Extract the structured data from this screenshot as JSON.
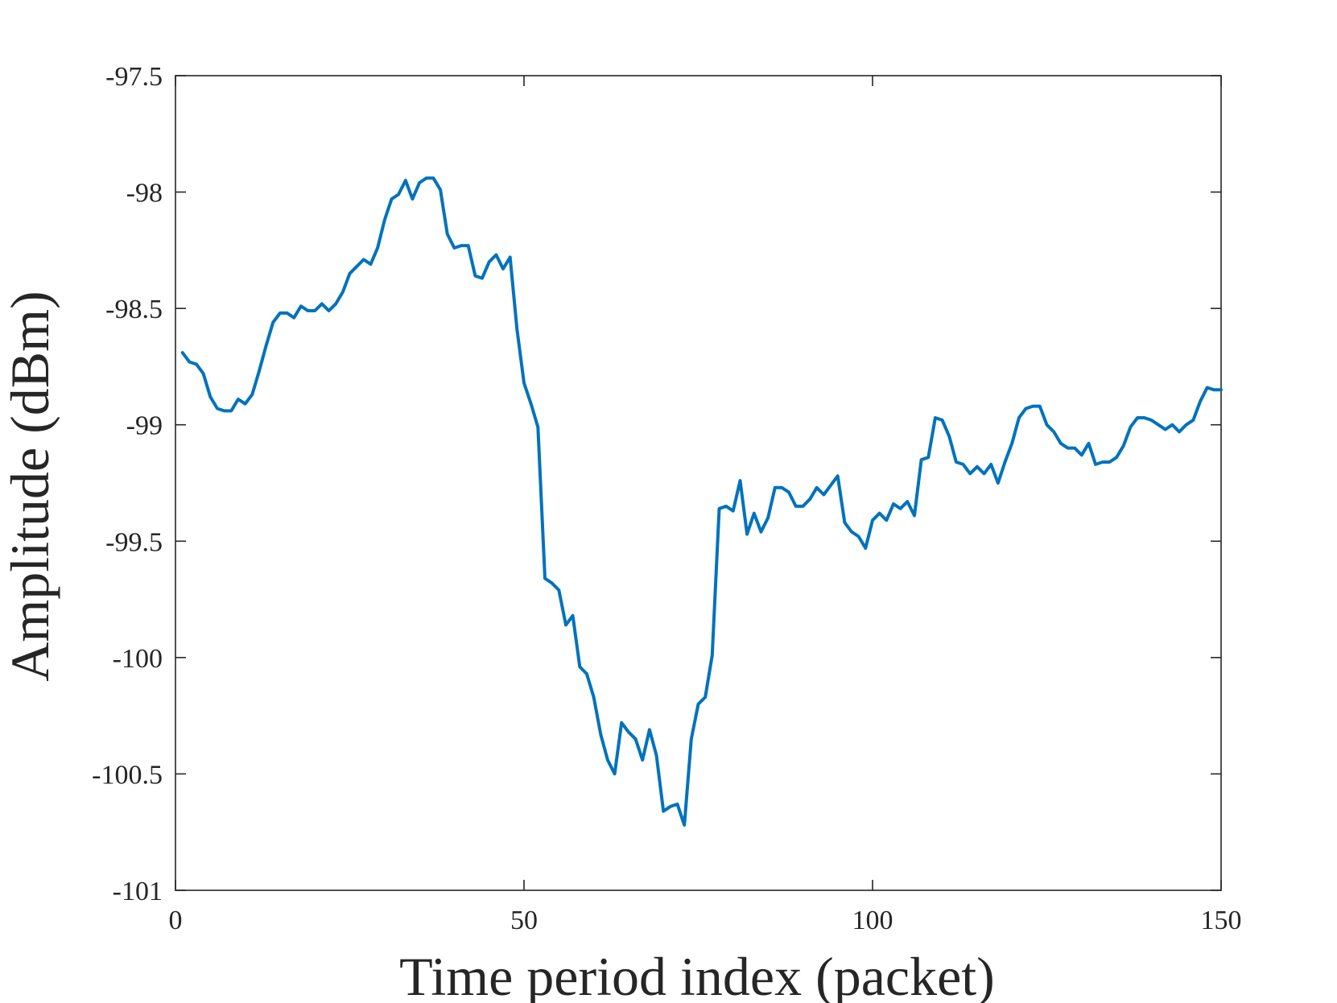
{
  "chart_data": {
    "type": "line",
    "title": "",
    "xlabel": "Time period index (packet)",
    "ylabel": "Amplitude (dBm)",
    "xlim": [
      0,
      150
    ],
    "ylim": [
      -101,
      -97.5
    ],
    "xticks": [
      0,
      50,
      100,
      150
    ],
    "yticks": [
      -101,
      -100.5,
      -100,
      -99.5,
      -99,
      -98.5,
      -98,
      -97.5
    ],
    "xtick_labels": [
      "0",
      "50",
      "100",
      "150"
    ],
    "ytick_labels": [
      "-101",
      "-100.5",
      "-100",
      "-99.5",
      "-99",
      "-98.5",
      "-98",
      "-97.5"
    ],
    "grid": false,
    "legend": "none",
    "series": [
      {
        "color": "#0072BD",
        "x": [
          1,
          2,
          3,
          4,
          5,
          6,
          7,
          8,
          9,
          10,
          11,
          12,
          13,
          14,
          15,
          16,
          17,
          18,
          19,
          20,
          21,
          22,
          23,
          24,
          25,
          26,
          27,
          28,
          29,
          30,
          31,
          32,
          33,
          34,
          35,
          36,
          37,
          38,
          39,
          40,
          41,
          42,
          43,
          44,
          45,
          46,
          47,
          48,
          49,
          50,
          51,
          52,
          53,
          54,
          55,
          56,
          57,
          58,
          59,
          60,
          61,
          62,
          63,
          64,
          65,
          66,
          67,
          68,
          69,
          70,
          71,
          72,
          73,
          74,
          75,
          76,
          77,
          78,
          79,
          80,
          81,
          82,
          83,
          84,
          85,
          86,
          87,
          88,
          89,
          90,
          91,
          92,
          93,
          94,
          95,
          96,
          97,
          98,
          99,
          100,
          101,
          102,
          103,
          104,
          105,
          106,
          107,
          108,
          109,
          110,
          111,
          112,
          113,
          114,
          115,
          116,
          117,
          118,
          119,
          120,
          121,
          122,
          123,
          124,
          125,
          126,
          127,
          128,
          129,
          130,
          131,
          132,
          133,
          134,
          135,
          136,
          137,
          138,
          139,
          140,
          141,
          142,
          143,
          144,
          145,
          146,
          147,
          148,
          149,
          150
        ],
        "y": [
          -98.69,
          -98.73,
          -98.74,
          -98.78,
          -98.88,
          -98.93,
          -98.94,
          -98.94,
          -98.89,
          -98.91,
          -98.87,
          -98.77,
          -98.66,
          -98.56,
          -98.52,
          -98.52,
          -98.54,
          -98.49,
          -98.51,
          -98.51,
          -98.48,
          -98.51,
          -98.48,
          -98.43,
          -98.35,
          -98.32,
          -98.29,
          -98.31,
          -98.24,
          -98.12,
          -98.03,
          -98.01,
          -97.95,
          -98.03,
          -97.96,
          -97.94,
          -97.94,
          -97.99,
          -98.18,
          -98.24,
          -98.23,
          -98.23,
          -98.36,
          -98.37,
          -98.3,
          -98.27,
          -98.33,
          -98.28,
          -98.59,
          -98.82,
          -98.91,
          -99.01,
          -99.66,
          -99.68,
          -99.71,
          -99.86,
          -99.82,
          -100.04,
          -100.07,
          -100.17,
          -100.33,
          -100.44,
          -100.5,
          -100.28,
          -100.32,
          -100.35,
          -100.44,
          -100.31,
          -100.42,
          -100.66,
          -100.64,
          -100.63,
          -100.72,
          -100.35,
          -100.2,
          -100.17,
          -99.99,
          -99.36,
          -99.35,
          -99.37,
          -99.24,
          -99.47,
          -99.38,
          -99.46,
          -99.4,
          -99.27,
          -99.27,
          -99.29,
          -99.35,
          -99.35,
          -99.32,
          -99.27,
          -99.3,
          -99.26,
          -99.22,
          -99.42,
          -99.46,
          -99.48,
          -99.53,
          -99.41,
          -99.38,
          -99.41,
          -99.34,
          -99.36,
          -99.33,
          -99.39,
          -99.15,
          -99.14,
          -98.97,
          -98.98,
          -99.05,
          -99.16,
          -99.17,
          -99.21,
          -99.18,
          -99.21,
          -99.17,
          -99.25,
          -99.16,
          -99.08,
          -98.97,
          -98.93,
          -98.92,
          -98.92,
          -99.0,
          -99.03,
          -99.08,
          -99.1,
          -99.1,
          -99.13,
          -99.08,
          -99.17,
          -99.16,
          -99.16,
          -99.14,
          -99.09,
          -99.01,
          -98.97,
          -98.97,
          -98.98,
          -99.0,
          -99.02,
          -99.0,
          -99.03,
          -99.0,
          -98.98,
          -98.9,
          -98.84,
          -98.85,
          -98.85
        ]
      }
    ]
  }
}
